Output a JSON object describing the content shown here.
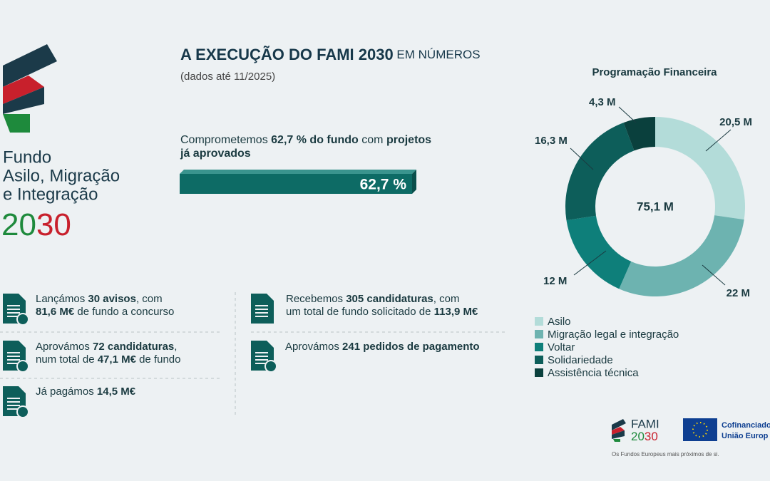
{
  "header": {
    "title": [
      {
        "text": "A EXECUÇÃO DO FAMI 2030",
        "bold": true
      },
      {
        "text": " EM NÚMEROS"
      }
    ],
    "subtitle": "(dados até 11/2025)"
  },
  "logo": {
    "lines": [
      "Fundo",
      "Asilo, Migração",
      "e Integração"
    ],
    "year": [
      {
        "text": "20",
        "color": "#1e8a3c"
      },
      {
        "text": "30",
        "color": "#c8202c"
      }
    ]
  },
  "highlight": {
    "lines": [
      [
        {
          "text": "Comprometemos "
        },
        {
          "text": "62,7 % do fundo",
          "bold": true
        },
        {
          "text": " com "
        },
        {
          "text": "projetos",
          "bold": true
        }
      ],
      [
        {
          "text": "já aprovados",
          "bold": true
        }
      ]
    ],
    "bar_label": "62,7 %"
  },
  "stats": [
    {
      "lines": [
        [
          {
            "text": "Lançámos "
          },
          {
            "text": "30 avisos",
            "bold": true
          },
          {
            "text": ", com"
          }
        ],
        [
          {
            "text": "81,6 M€",
            "bold": true
          },
          {
            "text": " de fundo a concurso"
          }
        ]
      ]
    },
    {
      "lines": [
        [
          {
            "text": "Recebemos "
          },
          {
            "text": "305 candidaturas",
            "bold": true
          },
          {
            "text": ", com"
          }
        ],
        [
          {
            "text": "um total de fundo solicitado de "
          },
          {
            "text": "113,9 M€",
            "bold": true
          }
        ]
      ]
    },
    {
      "lines": [
        [
          {
            "text": "Aprovámos "
          },
          {
            "text": "72 candidaturas",
            "bold": true
          },
          {
            "text": ","
          }
        ],
        [
          {
            "text": "num total de "
          },
          {
            "text": "47,1 M€",
            "bold": true
          },
          {
            "text": " de fundo"
          }
        ]
      ]
    },
    {
      "lines": [
        [
          {
            "text": "Aprovámos "
          },
          {
            "text": "241 pedidos de pagamento",
            "bold": true
          }
        ]
      ]
    },
    {
      "lines": [
        [
          {
            "text": "Já pagámos "
          },
          {
            "text": "14,5 M€",
            "bold": true
          }
        ]
      ]
    }
  ],
  "chart_data": {
    "type": "donut",
    "title": "Programação Financeira",
    "categories": [
      "Asilo",
      "Migração legal e integração",
      "Voltar",
      "Solidariedade",
      "Assistência técnica"
    ],
    "values": [
      20.5,
      22,
      12,
      16.3,
      4.3
    ],
    "value_labels": [
      "20,5 M",
      "22 M",
      "12 M",
      "16,3 M",
      "4,3 M"
    ],
    "colors": [
      "#b3dcd9",
      "#6db3b0",
      "#0e7f7a",
      "#0d5e5a",
      "#0a403d"
    ],
    "center_label": "75,1 M"
  },
  "footer": {
    "brand": "FAMI",
    "brand_year": [
      {
        "text": "20",
        "color": "#1e8a3c"
      },
      {
        "text": "30",
        "color": "#c8202c"
      }
    ],
    "eu_lines": [
      "Cofinanciado",
      "União Europ"
    ],
    "tagline": "Os Fundos Europeus mais próximos de si."
  }
}
